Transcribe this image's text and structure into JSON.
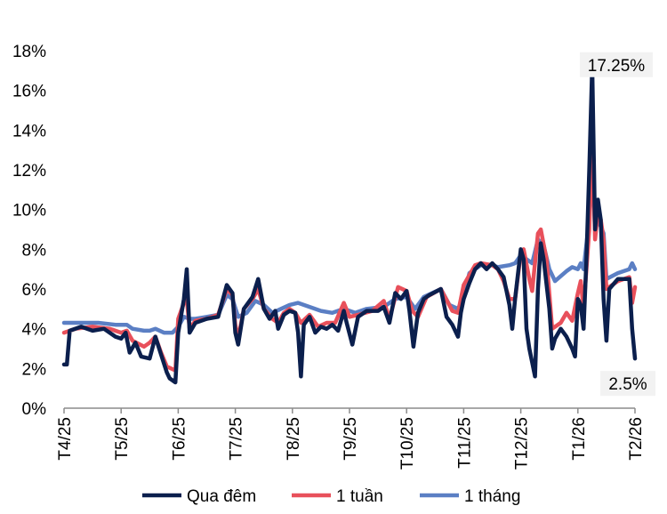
{
  "chart_data": {
    "type": "line",
    "x": [
      "T4/25",
      "T5/25",
      "T6/25",
      "T7/25",
      "T8/25",
      "T9/25",
      "T10/25",
      "T11/25",
      "T12/25",
      "T1/26",
      "T2/26"
    ],
    "ylim": [
      0,
      18
    ],
    "yticks": [
      "0%",
      "2%",
      "4%",
      "6%",
      "8%",
      "10%",
      "12%",
      "14%",
      "16%",
      "18%"
    ],
    "grid": false,
    "legend_position": "bottom",
    "series": [
      {
        "name": "Qua đêm",
        "color": "#0b1f4d",
        "points": [
          [
            0,
            2.2
          ],
          [
            0.05,
            2.2
          ],
          [
            0.1,
            3.9
          ],
          [
            0.3,
            4.1
          ],
          [
            0.5,
            3.9
          ],
          [
            0.7,
            4.0
          ],
          [
            0.9,
            3.6
          ],
          [
            1.0,
            3.5
          ],
          [
            1.08,
            3.8
          ],
          [
            1.15,
            2.8
          ],
          [
            1.25,
            3.3
          ],
          [
            1.35,
            2.6
          ],
          [
            1.5,
            2.5
          ],
          [
            1.6,
            3.6
          ],
          [
            1.7,
            2.7
          ],
          [
            1.8,
            1.8
          ],
          [
            1.85,
            1.5
          ],
          [
            1.95,
            1.3
          ],
          [
            2.0,
            3.8
          ],
          [
            2.1,
            5.5
          ],
          [
            2.15,
            7.0
          ],
          [
            2.2,
            3.8
          ],
          [
            2.3,
            4.3
          ],
          [
            2.5,
            4.5
          ],
          [
            2.7,
            4.6
          ],
          [
            2.85,
            6.2
          ],
          [
            2.95,
            5.8
          ],
          [
            3.0,
            3.8
          ],
          [
            3.05,
            3.2
          ],
          [
            3.15,
            5.0
          ],
          [
            3.3,
            5.6
          ],
          [
            3.4,
            6.5
          ],
          [
            3.5,
            5.0
          ],
          [
            3.6,
            4.5
          ],
          [
            3.7,
            4.9
          ],
          [
            3.75,
            4.0
          ],
          [
            3.85,
            4.7
          ],
          [
            3.95,
            4.9
          ],
          [
            4.05,
            4.8
          ],
          [
            4.1,
            3.8
          ],
          [
            4.15,
            1.6
          ],
          [
            4.2,
            4.2
          ],
          [
            4.3,
            4.6
          ],
          [
            4.4,
            3.8
          ],
          [
            4.5,
            4.1
          ],
          [
            4.6,
            4.0
          ],
          [
            4.7,
            4.2
          ],
          [
            4.8,
            3.9
          ],
          [
            4.9,
            4.9
          ],
          [
            4.95,
            4.3
          ],
          [
            5.05,
            3.2
          ],
          [
            5.15,
            4.6
          ],
          [
            5.3,
            4.9
          ],
          [
            5.5,
            4.9
          ],
          [
            5.6,
            5.1
          ],
          [
            5.7,
            4.3
          ],
          [
            5.8,
            5.8
          ],
          [
            5.9,
            5.5
          ],
          [
            6.0,
            5.9
          ],
          [
            6.05,
            4.9
          ],
          [
            6.12,
            3.1
          ],
          [
            6.2,
            4.8
          ],
          [
            6.3,
            5.5
          ],
          [
            6.4,
            5.7
          ],
          [
            6.6,
            6.0
          ],
          [
            6.7,
            4.6
          ],
          [
            6.8,
            4.2
          ],
          [
            6.9,
            3.6
          ],
          [
            6.95,
            4.8
          ],
          [
            7.0,
            5.5
          ],
          [
            7.1,
            6.3
          ],
          [
            7.2,
            7.0
          ],
          [
            7.3,
            7.3
          ],
          [
            7.4,
            7.0
          ],
          [
            7.5,
            7.3
          ],
          [
            7.6,
            7.0
          ],
          [
            7.7,
            6.6
          ],
          [
            7.8,
            5.2
          ],
          [
            7.85,
            4.0
          ],
          [
            7.9,
            5.5
          ],
          [
            8.0,
            8.0
          ],
          [
            8.05,
            7.5
          ],
          [
            8.1,
            4.0
          ],
          [
            8.15,
            3.0
          ],
          [
            8.2,
            2.3
          ],
          [
            8.25,
            1.6
          ],
          [
            8.3,
            6.0
          ],
          [
            8.35,
            8.3
          ],
          [
            8.4,
            7.5
          ],
          [
            8.5,
            5.0
          ],
          [
            8.55,
            3.0
          ],
          [
            8.6,
            3.5
          ],
          [
            8.7,
            4.0
          ],
          [
            8.8,
            3.6
          ],
          [
            8.9,
            3.0
          ],
          [
            8.95,
            2.6
          ],
          [
            9.0,
            5.5
          ],
          [
            9.05,
            5.2
          ],
          [
            9.1,
            4.0
          ],
          [
            9.15,
            7.5
          ],
          [
            9.2,
            12.0
          ],
          [
            9.25,
            17.25
          ],
          [
            9.3,
            9.0
          ],
          [
            9.35,
            10.5
          ],
          [
            9.4,
            9.5
          ],
          [
            9.45,
            5.5
          ],
          [
            9.5,
            3.4
          ],
          [
            9.55,
            6.0
          ],
          [
            9.7,
            6.5
          ],
          [
            9.9,
            6.5
          ],
          [
            9.95,
            4.0
          ],
          [
            10.0,
            2.5
          ]
        ]
      },
      {
        "name": "1 tuần",
        "color": "#e8505b",
        "points": [
          [
            0,
            3.8
          ],
          [
            0.2,
            4.0
          ],
          [
            0.5,
            4.1
          ],
          [
            0.8,
            4.0
          ],
          [
            1.0,
            3.8
          ],
          [
            1.1,
            3.9
          ],
          [
            1.2,
            3.4
          ],
          [
            1.4,
            3.1
          ],
          [
            1.5,
            3.3
          ],
          [
            1.6,
            3.6
          ],
          [
            1.7,
            2.8
          ],
          [
            1.8,
            2.1
          ],
          [
            1.95,
            1.9
          ],
          [
            2.0,
            4.5
          ],
          [
            2.1,
            5.3
          ],
          [
            2.15,
            5.5
          ],
          [
            2.2,
            4.0
          ],
          [
            2.3,
            4.4
          ],
          [
            2.5,
            4.5
          ],
          [
            2.7,
            4.7
          ],
          [
            2.85,
            6.0
          ],
          [
            2.95,
            5.7
          ],
          [
            3.0,
            4.2
          ],
          [
            3.05,
            3.5
          ],
          [
            3.15,
            5.0
          ],
          [
            3.3,
            5.5
          ],
          [
            3.4,
            6.0
          ],
          [
            3.5,
            5.0
          ],
          [
            3.65,
            4.5
          ],
          [
            3.75,
            4.3
          ],
          [
            3.85,
            4.8
          ],
          [
            3.95,
            5.0
          ],
          [
            4.05,
            4.8
          ],
          [
            4.15,
            4.3
          ],
          [
            4.3,
            4.7
          ],
          [
            4.45,
            4.1
          ],
          [
            4.6,
            4.3
          ],
          [
            4.75,
            4.3
          ],
          [
            4.9,
            5.3
          ],
          [
            5.0,
            4.6
          ],
          [
            5.15,
            4.7
          ],
          [
            5.4,
            4.9
          ],
          [
            5.6,
            5.4
          ],
          [
            5.7,
            4.5
          ],
          [
            5.85,
            6.1
          ],
          [
            6.0,
            5.9
          ],
          [
            6.1,
            4.9
          ],
          [
            6.2,
            4.6
          ],
          [
            6.35,
            5.6
          ],
          [
            6.6,
            6.0
          ],
          [
            6.8,
            4.9
          ],
          [
            6.9,
            4.8
          ],
          [
            7.0,
            6.2
          ],
          [
            7.1,
            6.7
          ],
          [
            7.2,
            7.2
          ],
          [
            7.3,
            7.3
          ],
          [
            7.5,
            7.2
          ],
          [
            7.6,
            7.0
          ],
          [
            7.7,
            6.4
          ],
          [
            7.8,
            5.5
          ],
          [
            7.9,
            5.5
          ],
          [
            8.0,
            7.8
          ],
          [
            8.05,
            8.0
          ],
          [
            8.15,
            6.5
          ],
          [
            8.2,
            5.9
          ],
          [
            8.3,
            8.8
          ],
          [
            8.35,
            9.0
          ],
          [
            8.45,
            7.5
          ],
          [
            8.55,
            4.0
          ],
          [
            8.7,
            4.3
          ],
          [
            8.8,
            4.8
          ],
          [
            8.9,
            4.4
          ],
          [
            9.0,
            5.8
          ],
          [
            9.05,
            6.4
          ],
          [
            9.1,
            5.0
          ],
          [
            9.15,
            7.0
          ],
          [
            9.2,
            9.0
          ],
          [
            9.25,
            14.0
          ],
          [
            9.3,
            8.5
          ],
          [
            9.35,
            9.9
          ],
          [
            9.4,
            9.5
          ],
          [
            9.45,
            8.5
          ],
          [
            9.5,
            6.0
          ],
          [
            9.7,
            6.4
          ],
          [
            9.9,
            6.6
          ],
          [
            9.95,
            5.3
          ],
          [
            10.0,
            6.1
          ]
        ]
      },
      {
        "name": "1 tháng",
        "color": "#5b7fc4",
        "points": [
          [
            0,
            4.3
          ],
          [
            0.3,
            4.3
          ],
          [
            0.6,
            4.3
          ],
          [
            0.9,
            4.2
          ],
          [
            1.1,
            4.2
          ],
          [
            1.2,
            4.0
          ],
          [
            1.4,
            3.9
          ],
          [
            1.5,
            3.9
          ],
          [
            1.6,
            4.0
          ],
          [
            1.75,
            3.8
          ],
          [
            1.9,
            3.8
          ],
          [
            2.0,
            4.1
          ],
          [
            2.1,
            4.6
          ],
          [
            2.2,
            4.5
          ],
          [
            2.3,
            4.5
          ],
          [
            2.5,
            4.6
          ],
          [
            2.7,
            4.7
          ],
          [
            2.85,
            5.7
          ],
          [
            2.95,
            5.5
          ],
          [
            3.05,
            4.6
          ],
          [
            3.2,
            4.8
          ],
          [
            3.35,
            5.4
          ],
          [
            3.5,
            5.2
          ],
          [
            3.65,
            4.8
          ],
          [
            3.8,
            5.0
          ],
          [
            3.95,
            5.2
          ],
          [
            4.1,
            5.3
          ],
          [
            4.3,
            5.1
          ],
          [
            4.5,
            4.9
          ],
          [
            4.7,
            4.8
          ],
          [
            4.9,
            5.0
          ],
          [
            5.1,
            4.8
          ],
          [
            5.3,
            5.0
          ],
          [
            5.6,
            5.1
          ],
          [
            5.8,
            5.5
          ],
          [
            6.0,
            5.6
          ],
          [
            6.15,
            5.0
          ],
          [
            6.3,
            5.6
          ],
          [
            6.6,
            6.0
          ],
          [
            6.75,
            5.2
          ],
          [
            6.9,
            5.0
          ],
          [
            7.0,
            5.6
          ],
          [
            7.1,
            6.8
          ],
          [
            7.3,
            7.2
          ],
          [
            7.5,
            7.2
          ],
          [
            7.6,
            7.1
          ],
          [
            7.8,
            7.2
          ],
          [
            7.9,
            7.3
          ],
          [
            8.0,
            7.7
          ],
          [
            8.15,
            7.4
          ],
          [
            8.2,
            7.3
          ],
          [
            8.3,
            8.5
          ],
          [
            8.4,
            8.2
          ],
          [
            8.5,
            7.0
          ],
          [
            8.6,
            6.4
          ],
          [
            8.8,
            6.9
          ],
          [
            8.9,
            7.1
          ],
          [
            9.0,
            7.0
          ],
          [
            9.05,
            7.3
          ],
          [
            9.1,
            7.0
          ],
          [
            9.2,
            9.5
          ],
          [
            9.25,
            12.3
          ],
          [
            9.3,
            9.0
          ],
          [
            9.35,
            9.5
          ],
          [
            9.45,
            8.8
          ],
          [
            9.5,
            6.5
          ],
          [
            9.7,
            6.8
          ],
          [
            9.9,
            7.0
          ],
          [
            9.95,
            7.3
          ],
          [
            10.0,
            7.0
          ]
        ]
      }
    ],
    "annotations": [
      {
        "label": "17.25%",
        "series": 0,
        "point": [
          9.25,
          17.25
        ]
      },
      {
        "label": "2.5%",
        "series": 0,
        "point": [
          10.0,
          2.5
        ]
      }
    ]
  }
}
